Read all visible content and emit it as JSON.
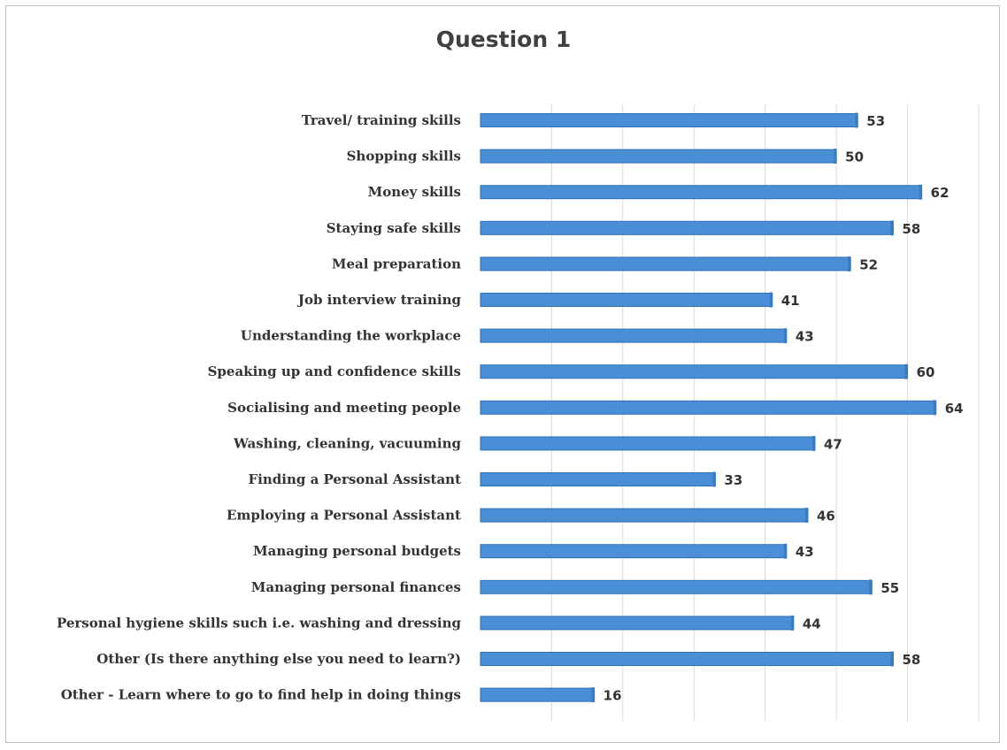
{
  "chart_data": {
    "type": "bar",
    "orientation": "horizontal",
    "title": "Question 1",
    "categories": [
      "Travel/ training skills",
      "Shopping skills",
      "Money skills",
      "Staying safe skills",
      "Meal preparation",
      "Job interview training",
      "Understanding the workplace",
      "Speaking up and confidence skills",
      "Socialising and meeting people",
      "Washing, cleaning, vacuuming",
      "Finding a Personal Assistant",
      "Employing a Personal Assistant",
      "Managing personal budgets",
      "Managing personal finances",
      "Personal hygiene skills such i.e. washing and dressing",
      "Other (Is there anything else you need to learn?)",
      "Other - Learn where to go to find help in doing things"
    ],
    "values": [
      53,
      50,
      62,
      58,
      52,
      41,
      43,
      60,
      64,
      47,
      33,
      46,
      43,
      55,
      44,
      58,
      16
    ],
    "xlim": [
      0,
      70
    ],
    "grid": true,
    "legend": "none",
    "bar_color": "#4a8fd6"
  }
}
